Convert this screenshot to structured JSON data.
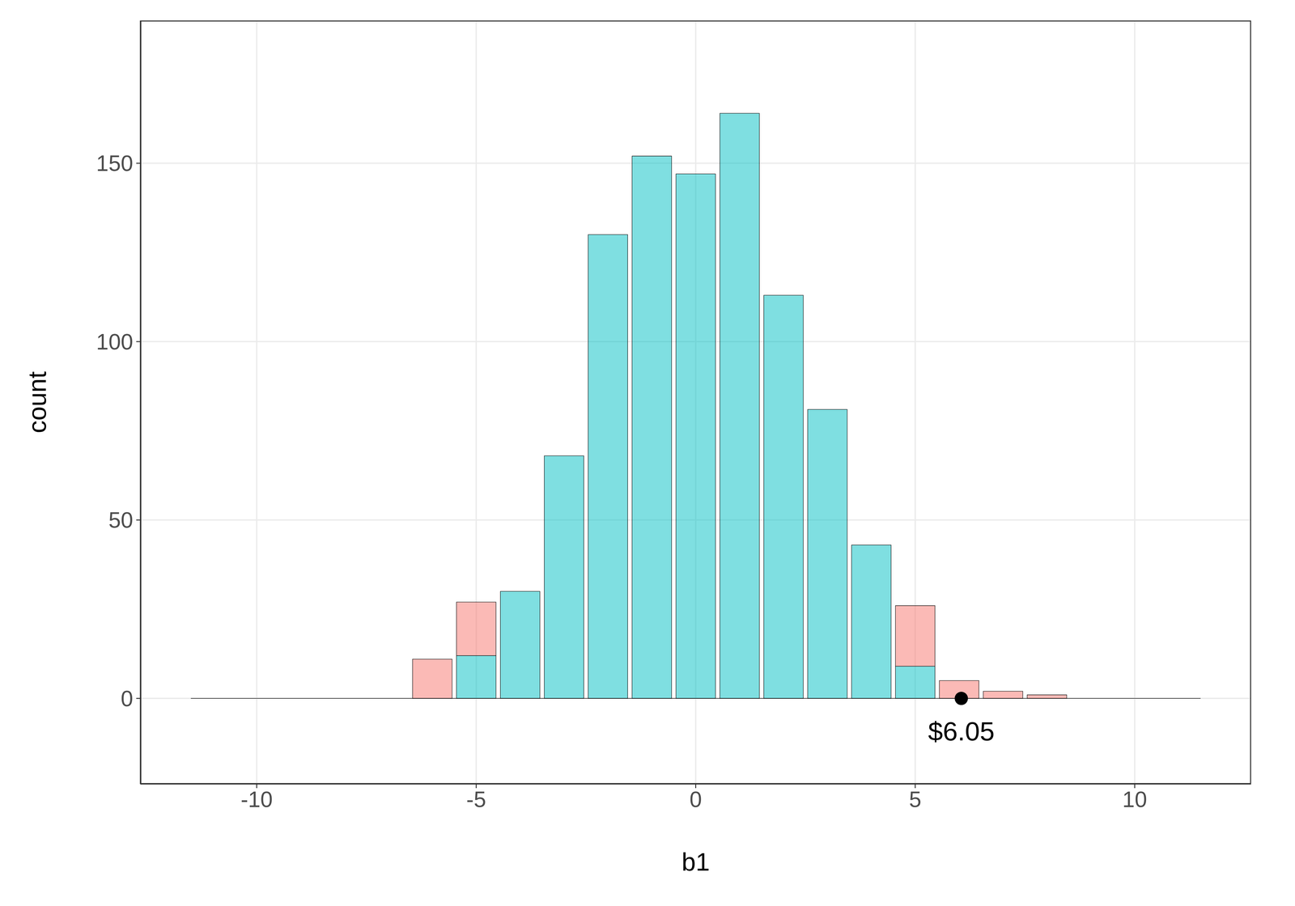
{
  "chart_data": {
    "type": "histogram",
    "x_label": "b1",
    "y_label": "count",
    "bins": [
      -11.5,
      -10.5,
      -9.5,
      -8.5,
      -7.5,
      -6.5,
      -5.5,
      -4.5,
      -3.5,
      -2.5,
      -1.5,
      -0.5,
      0.5,
      1.5,
      2.5,
      3.5,
      4.5,
      5.5,
      6.5,
      7.5,
      8.5,
      9.5,
      10.5,
      11.5
    ],
    "series": [
      {
        "color": "#00BFC4",
        "values": [
          0,
          0,
          0,
          0,
          0,
          0,
          12,
          30,
          68,
          130,
          152,
          147,
          164,
          113,
          81,
          43,
          9,
          0,
          0,
          0,
          0,
          0,
          0
        ]
      },
      {
        "color": "#F8766D",
        "values": [
          0,
          0,
          0,
          0,
          0,
          11,
          15,
          0,
          0,
          0,
          0,
          0,
          0,
          0,
          0,
          0,
          17,
          5,
          2,
          1,
          0,
          0,
          0
        ]
      }
    ],
    "stacked": true,
    "xlim": [
      -12.65,
      12.65
    ],
    "xticks": [
      -10,
      -5,
      0,
      5,
      10
    ],
    "ylim": [
      -24,
      190
    ],
    "yticks": [
      0,
      50,
      100,
      150
    ],
    "grid": true,
    "annotations": [
      {
        "x": 6.05,
        "y": 0,
        "text": "$6.05"
      }
    ]
  }
}
